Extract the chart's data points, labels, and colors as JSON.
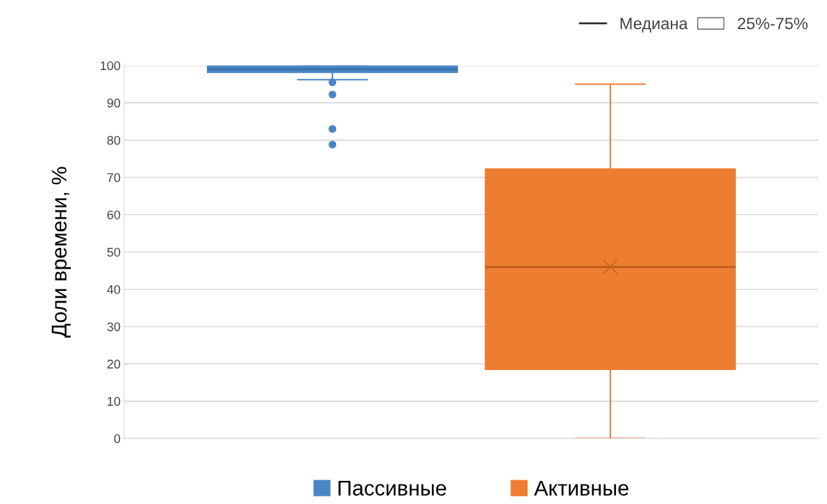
{
  "chart_data": {
    "type": "box",
    "ylabel": "Доли времени, %",
    "categories": [
      null
    ],
    "series": [
      {
        "name": "Пассивные",
        "color": "#4a86c5",
        "boxes": [
          {
            "low": 96.2,
            "q1": 98.1,
            "median": 99,
            "q3": 100,
            "high": 100,
            "outliers": [
              95.5,
              92.2,
              83,
              78.8
            ]
          }
        ]
      },
      {
        "name": "Активные",
        "color": "#ed7d31",
        "boxes": [
          {
            "low": 0,
            "q1": 18.5,
            "median": 46,
            "q3": 72.3,
            "high": 95,
            "mean": 46
          }
        ]
      }
    ],
    "annotations": [
      "Медиана",
      "25%-75%"
    ],
    "ylim": [
      0,
      100
    ],
    "yticks": [
      0,
      10,
      20,
      30,
      40,
      50,
      60,
      70,
      80,
      90,
      100
    ],
    "grid": "y",
    "legend": "bottom",
    "marker": "circle"
  }
}
